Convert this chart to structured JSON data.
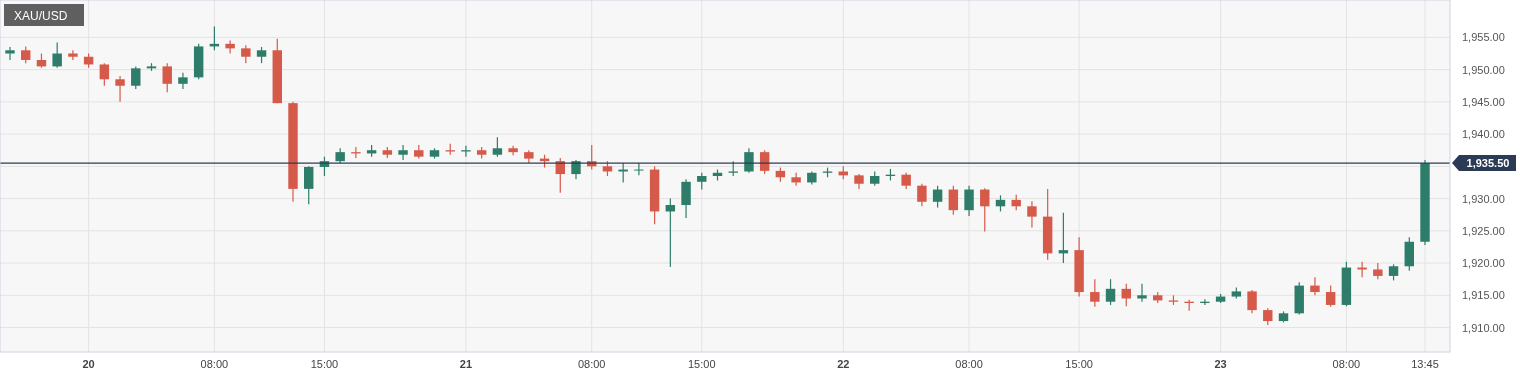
{
  "chart_data": {
    "type": "candlestick",
    "title": "XAU/USD",
    "categories": [
      null,
      null,
      null,
      null,
      null,
      "20",
      null,
      null,
      null,
      null,
      null,
      null,
      null,
      "08:00",
      null,
      null,
      null,
      null,
      null,
      null,
      "15:00",
      null,
      null,
      null,
      null,
      null,
      null,
      null,
      null,
      "21",
      null,
      null,
      null,
      null,
      null,
      null,
      null,
      "08:00",
      null,
      null,
      null,
      null,
      null,
      null,
      "15:00",
      null,
      null,
      null,
      null,
      null,
      null,
      null,
      null,
      "22",
      null,
      null,
      null,
      null,
      null,
      null,
      null,
      "08:00",
      null,
      null,
      null,
      null,
      null,
      null,
      "15:00",
      null,
      null,
      null,
      null,
      null,
      null,
      null,
      null,
      "23",
      null,
      null,
      null,
      null,
      null,
      null,
      null,
      "08:00",
      null,
      null,
      null,
      null,
      "13:45"
    ],
    "ohlc": [
      [
        1952.5,
        1953.5,
        1951.5,
        1953.0
      ],
      [
        1953.0,
        1953.6,
        1951.0,
        1951.5
      ],
      [
        1951.5,
        1952.5,
        1950.3,
        1950.5
      ],
      [
        1950.5,
        1954.2,
        1950.3,
        1952.5
      ],
      [
        1952.5,
        1953.0,
        1951.5,
        1952.0
      ],
      [
        1952.0,
        1952.5,
        1950.3,
        1950.8
      ],
      [
        1950.8,
        1951.0,
        1947.5,
        1948.5
      ],
      [
        1948.5,
        1949.0,
        1945.0,
        1947.5
      ],
      [
        1947.5,
        1950.5,
        1947.0,
        1950.2
      ],
      [
        1950.2,
        1951.0,
        1949.8,
        1950.5
      ],
      [
        1950.5,
        1951.0,
        1946.5,
        1947.8
      ],
      [
        1947.8,
        1949.5,
        1947.0,
        1948.8
      ],
      [
        1948.8,
        1954.0,
        1948.5,
        1953.6
      ],
      [
        1953.6,
        1956.7,
        1953.0,
        1954.0
      ],
      [
        1954.0,
        1954.5,
        1952.5,
        1953.3
      ],
      [
        1953.3,
        1953.8,
        1951.0,
        1952.0
      ],
      [
        1952.0,
        1953.5,
        1951.0,
        1953.0
      ],
      [
        1953.0,
        1954.8,
        1944.8,
        1944.8
      ],
      [
        1944.8,
        1945.0,
        1929.5,
        1931.5
      ],
      [
        1931.5,
        1935.0,
        1929.1,
        1934.9
      ],
      [
        1934.9,
        1936.5,
        1933.5,
        1935.8
      ],
      [
        1935.8,
        1937.8,
        1935.5,
        1937.2
      ],
      [
        1937.2,
        1938.0,
        1936.3,
        1937.0
      ],
      [
        1937.0,
        1938.3,
        1936.5,
        1937.5
      ],
      [
        1937.5,
        1938.0,
        1936.3,
        1936.8
      ],
      [
        1936.8,
        1938.3,
        1936.0,
        1937.5
      ],
      [
        1937.5,
        1938.3,
        1936.2,
        1936.5
      ],
      [
        1936.5,
        1937.8,
        1936.2,
        1937.5
      ],
      [
        1937.5,
        1938.5,
        1936.8,
        1937.3
      ],
      [
        1937.3,
        1938.2,
        1936.5,
        1937.5
      ],
      [
        1937.5,
        1938.0,
        1936.2,
        1936.8
      ],
      [
        1936.8,
        1939.5,
        1936.5,
        1937.8
      ],
      [
        1937.8,
        1938.2,
        1936.7,
        1937.2
      ],
      [
        1937.2,
        1937.5,
        1935.5,
        1936.2
      ],
      [
        1936.2,
        1936.8,
        1934.8,
        1935.8
      ],
      [
        1935.8,
        1936.3,
        1930.9,
        1933.8
      ],
      [
        1933.8,
        1936.0,
        1933.0,
        1935.8
      ],
      [
        1935.8,
        1938.3,
        1934.5,
        1935.0
      ],
      [
        1935.0,
        1935.8,
        1933.5,
        1934.2
      ],
      [
        1934.2,
        1935.5,
        1932.5,
        1934.5
      ],
      [
        1934.5,
        1935.5,
        1933.6,
        1934.5
      ],
      [
        1934.5,
        1935.0,
        1926.0,
        1928.0
      ],
      [
        1928.0,
        1930.0,
        1919.4,
        1929.0
      ],
      [
        1929.0,
        1933.0,
        1927.0,
        1932.6
      ],
      [
        1932.6,
        1934.0,
        1931.4,
        1933.5
      ],
      [
        1933.5,
        1934.5,
        1932.8,
        1934.0
      ],
      [
        1934.0,
        1935.8,
        1933.5,
        1934.2
      ],
      [
        1934.2,
        1937.8,
        1934.0,
        1937.2
      ],
      [
        1937.2,
        1937.5,
        1933.8,
        1934.3
      ],
      [
        1934.3,
        1934.8,
        1932.6,
        1933.3
      ],
      [
        1933.3,
        1934.0,
        1932.0,
        1932.5
      ],
      [
        1932.5,
        1934.2,
        1932.2,
        1934.0
      ],
      [
        1934.0,
        1934.8,
        1933.3,
        1934.2
      ],
      [
        1934.2,
        1935.0,
        1933.0,
        1933.6
      ],
      [
        1933.6,
        1933.8,
        1931.5,
        1932.3
      ],
      [
        1932.3,
        1934.2,
        1932.0,
        1933.5
      ],
      [
        1933.5,
        1934.6,
        1932.8,
        1933.7
      ],
      [
        1933.7,
        1934.0,
        1931.5,
        1932.0
      ],
      [
        1932.0,
        1932.3,
        1928.8,
        1929.5
      ],
      [
        1929.5,
        1932.0,
        1928.6,
        1931.4
      ],
      [
        1931.4,
        1932.0,
        1927.5,
        1928.2
      ],
      [
        1928.2,
        1932.0,
        1927.3,
        1931.4
      ],
      [
        1931.4,
        1931.6,
        1924.9,
        1928.8
      ],
      [
        1928.8,
        1930.5,
        1928.0,
        1929.8
      ],
      [
        1929.8,
        1930.6,
        1928.2,
        1928.8
      ],
      [
        1928.8,
        1929.6,
        1925.5,
        1927.2
      ],
      [
        1927.2,
        1931.5,
        1920.5,
        1921.5
      ],
      [
        1921.5,
        1927.8,
        1920.0,
        1922.0
      ],
      [
        1922.0,
        1924.0,
        1914.8,
        1915.5
      ],
      [
        1915.5,
        1917.5,
        1913.2,
        1914.0
      ],
      [
        1914.0,
        1917.5,
        1913.5,
        1916.0
      ],
      [
        1916.0,
        1916.8,
        1913.3,
        1914.5
      ],
      [
        1914.5,
        1916.8,
        1914.0,
        1915.0
      ],
      [
        1915.0,
        1915.5,
        1913.8,
        1914.2
      ],
      [
        1914.2,
        1915.0,
        1913.5,
        1914.0
      ],
      [
        1914.0,
        1914.3,
        1912.6,
        1913.8
      ],
      [
        1913.8,
        1914.4,
        1913.5,
        1914.0
      ],
      [
        1914.0,
        1915.2,
        1913.8,
        1914.8
      ],
      [
        1914.8,
        1916.2,
        1914.5,
        1915.6
      ],
      [
        1915.6,
        1915.8,
        1912.2,
        1912.7
      ],
      [
        1912.7,
        1913.0,
        1910.4,
        1911.0
      ],
      [
        1911.0,
        1912.5,
        1910.8,
        1912.2
      ],
      [
        1912.2,
        1917.0,
        1912.0,
        1916.5
      ],
      [
        1916.5,
        1917.8,
        1915.0,
        1915.5
      ],
      [
        1915.5,
        1916.5,
        1913.2,
        1913.5
      ],
      [
        1913.5,
        1920.2,
        1913.3,
        1919.3
      ],
      [
        1919.3,
        1920.2,
        1917.8,
        1919.0
      ],
      [
        1919.0,
        1920.0,
        1917.5,
        1918.0
      ],
      [
        1918.0,
        1919.8,
        1917.3,
        1919.5
      ],
      [
        1919.5,
        1924.0,
        1918.8,
        1923.3
      ],
      [
        1923.3,
        1936.0,
        1922.8,
        1935.5
      ]
    ],
    "ylim": [
      1906.2,
      1960.8
    ],
    "yticks": [
      {
        "value": 1910,
        "label": "1,910.00"
      },
      {
        "value": 1915,
        "label": "1,915.00"
      },
      {
        "value": 1920,
        "label": "1,920.00"
      },
      {
        "value": 1925,
        "label": "1,925.00"
      },
      {
        "value": 1930,
        "label": "1,930.00"
      },
      {
        "value": 1935,
        "label": null
      },
      {
        "value": 1940,
        "label": "1,940.00"
      },
      {
        "value": 1945,
        "label": "1,945.00"
      },
      {
        "value": 1950,
        "label": "1,950.00"
      },
      {
        "value": 1955,
        "label": "1,955.00"
      }
    ],
    "ref_lines": [
      {
        "axis": "y",
        "value": 1935.5,
        "label": "1,935.50",
        "color": "#2b3b55"
      }
    ],
    "grid": true
  }
}
